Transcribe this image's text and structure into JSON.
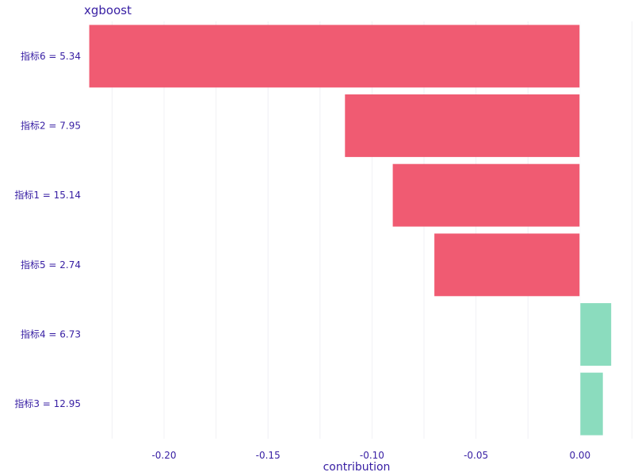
{
  "chart_data": {
    "type": "bar",
    "orientation": "horizontal",
    "title": "xgboost",
    "xlabel": "contribution",
    "ylabel": "",
    "categories": [
      "指标6 = 5.34",
      "指标2 = 7.95",
      "指标1 = 15.14",
      "指标5 = 2.74",
      "指标4 = 6.73",
      "指标3 = 12.95"
    ],
    "values": [
      -0.236,
      -0.113,
      -0.09,
      -0.07,
      0.015,
      0.011
    ],
    "xlim": [
      -0.2385,
      0.026
    ],
    "xticks": [
      -0.2,
      -0.15,
      -0.1,
      -0.05,
      0.0
    ],
    "xtick_labels": [
      "-0.20",
      "-0.15",
      "-0.10",
      "-0.05",
      "0.00"
    ],
    "grid": true,
    "colors": {
      "negative": "#f05b72",
      "positive": "#8bdcbe",
      "text": "#371ea3",
      "grid": "#f0f0f4",
      "zero_line": "#f0f0f4"
    }
  }
}
